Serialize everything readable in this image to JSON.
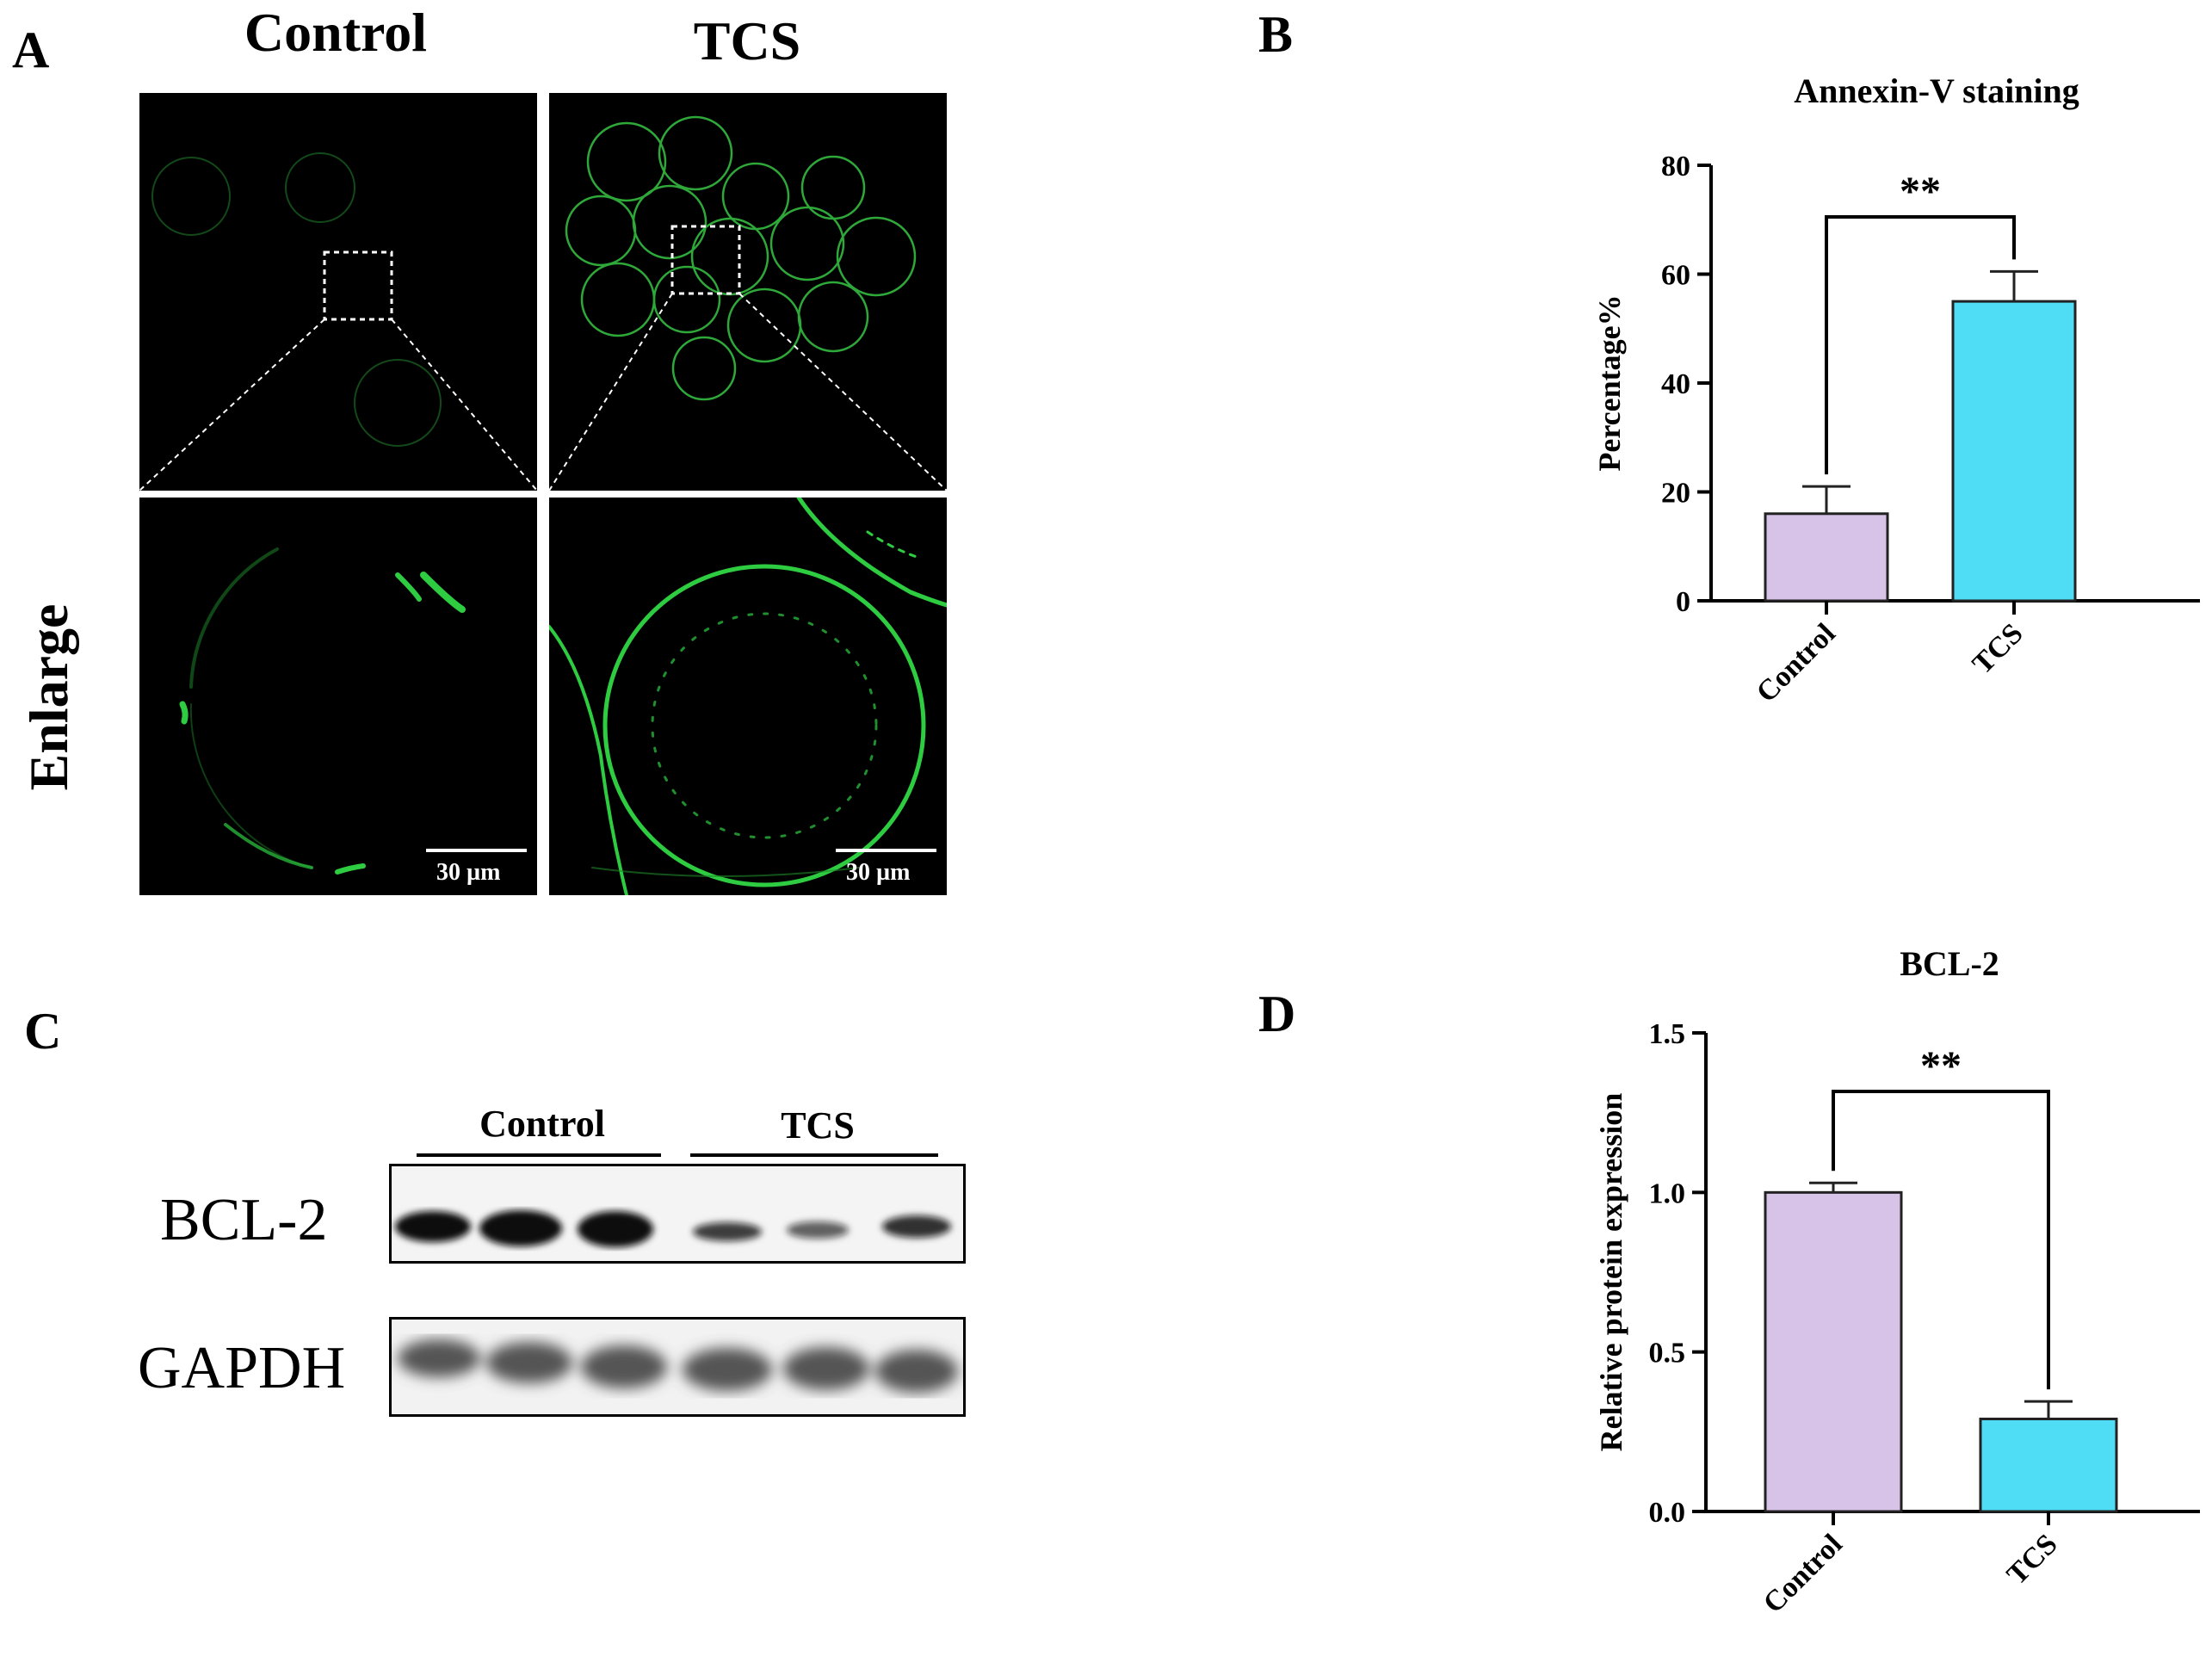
{
  "figure": {
    "panel_a": {
      "letter": "A",
      "columns": [
        "Control",
        "TCS"
      ],
      "row_label": "Enlarge",
      "scale_bar": "30 µm"
    },
    "panel_b": {
      "letter": "B"
    },
    "panel_c": {
      "letter": "C",
      "groups": [
        "Control",
        "TCS"
      ],
      "rows": [
        "BCL-2",
        "GAPDH"
      ]
    },
    "panel_d": {
      "letter": "D"
    }
  },
  "colors": {
    "control_bar": "#d8c3e8",
    "tcs_bar": "#4fdcf5",
    "fluorescence": "#2ecc40"
  },
  "chart_data": [
    {
      "type": "bar",
      "title": "Annexin-V staining",
      "ylabel": "Percentage%",
      "xlabel": "",
      "categories": [
        "Control",
        "TCS"
      ],
      "values": [
        16,
        55
      ],
      "errors": [
        5,
        5.5
      ],
      "ylim": [
        0,
        80
      ],
      "yticks": [
        0,
        20,
        40,
        60,
        80
      ],
      "significance": "**"
    },
    {
      "type": "bar",
      "title": "BCL-2",
      "ylabel": "Relative protein expression",
      "xlabel": "",
      "categories": [
        "Control",
        "TCS"
      ],
      "values": [
        1.0,
        0.29
      ],
      "errors": [
        0.03,
        0.055
      ],
      "ylim": [
        0,
        1.5
      ],
      "yticks": [
        "0.0",
        "0.5",
        "1.0",
        "1.5"
      ],
      "significance": "**"
    }
  ]
}
